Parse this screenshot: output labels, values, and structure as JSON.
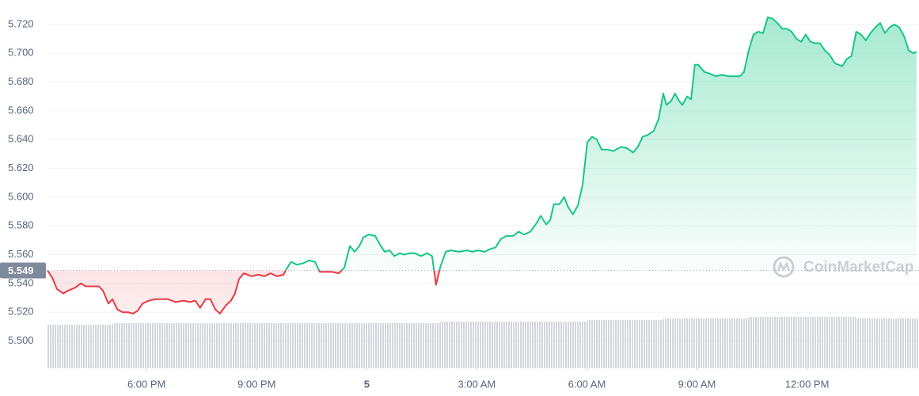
{
  "chart_data": {
    "type": "line",
    "watermark": "CoinMarketCap",
    "baseline": 5.549,
    "up_color": "#16c784",
    "down_color": "#ea3943",
    "volume_color": "#d3d7dd",
    "grid": true,
    "xlim": [
      15.3,
      39.05
    ],
    "ylim": [
      5.481,
      5.737
    ],
    "y2lim": [
      0,
      465
    ],
    "xticks": [
      {
        "value": 18,
        "label": "6:00 PM"
      },
      {
        "value": 21,
        "label": "9:00 PM"
      },
      {
        "value": 24,
        "label": "5"
      },
      {
        "value": 27,
        "label": "3:00 AM"
      },
      {
        "value": 30,
        "label": "6:00 AM"
      },
      {
        "value": 33,
        "label": "9:00 AM"
      },
      {
        "value": 36,
        "label": "12:00 PM"
      }
    ],
    "yticks": [
      {
        "value": 5.5,
        "label": "5.500"
      },
      {
        "value": 5.52,
        "label": "5.520"
      },
      {
        "value": 5.54,
        "label": "5.540"
      },
      {
        "value": 5.56,
        "label": "5.560"
      },
      {
        "value": 5.58,
        "label": "5.580"
      },
      {
        "value": 5.6,
        "label": "5.600"
      },
      {
        "value": 5.62,
        "label": "5.620"
      },
      {
        "value": 5.64,
        "label": "5.640"
      },
      {
        "value": 5.66,
        "label": "5.660"
      },
      {
        "value": 5.68,
        "label": "5.680"
      },
      {
        "value": 5.7,
        "label": "5.700"
      },
      {
        "value": 5.72,
        "label": "5.720"
      }
    ],
    "x": [
      15.3,
      15.43,
      15.56,
      15.73,
      15.86,
      16.05,
      16.21,
      16.34,
      16.49,
      16.7,
      16.81,
      16.96,
      17.07,
      17.2,
      17.35,
      17.5,
      17.63,
      17.76,
      17.89,
      18.06,
      18.23,
      18.41,
      18.58,
      18.79,
      19.01,
      19.18,
      19.33,
      19.46,
      19.61,
      19.74,
      19.87,
      20.0,
      20.17,
      20.3,
      20.41,
      20.52,
      20.65,
      20.86,
      21.04,
      21.21,
      21.38,
      21.55,
      21.73,
      21.81,
      21.94,
      22.09,
      22.27,
      22.42,
      22.59,
      22.72,
      22.89,
      23.06,
      23.24,
      23.39,
      23.54,
      23.67,
      23.8,
      23.91,
      24.06,
      24.23,
      24.36,
      24.49,
      24.62,
      24.75,
      24.9,
      25.01,
      25.18,
      25.31,
      25.48,
      25.65,
      25.78,
      25.89,
      26.0,
      26.15,
      26.3,
      26.52,
      26.73,
      26.88,
      27.03,
      27.21,
      27.38,
      27.51,
      27.66,
      27.81,
      27.99,
      28.14,
      28.29,
      28.46,
      28.63,
      28.74,
      28.89,
      29.0,
      29.1,
      29.25,
      29.38,
      29.49,
      29.62,
      29.75,
      29.88,
      30.01,
      30.14,
      30.27,
      30.4,
      30.57,
      30.72,
      30.94,
      31.09,
      31.26,
      31.39,
      31.52,
      31.65,
      31.82,
      31.95,
      32.08,
      32.17,
      32.3,
      32.4,
      32.51,
      32.6,
      32.73,
      32.84,
      32.94,
      33.03,
      33.2,
      33.33,
      33.51,
      33.68,
      33.85,
      33.98,
      34.17,
      34.28,
      34.41,
      34.54,
      34.67,
      34.8,
      34.93,
      35.06,
      35.19,
      35.32,
      35.45,
      35.58,
      35.71,
      35.84,
      35.96,
      36.09,
      36.22,
      36.35,
      36.48,
      36.61,
      36.76,
      36.96,
      37.08,
      37.21,
      37.34,
      37.47,
      37.6,
      37.73,
      37.86,
      37.99,
      38.12,
      38.25,
      38.38,
      38.51,
      38.64,
      38.77,
      38.9,
      38.98
    ],
    "values": [
      5.549,
      5.544,
      5.536,
      5.533,
      5.535,
      5.537,
      5.54,
      5.538,
      5.538,
      5.538,
      5.535,
      5.526,
      5.529,
      5.522,
      5.52,
      5.52,
      5.519,
      5.521,
      5.526,
      5.528,
      5.529,
      5.529,
      5.529,
      5.527,
      5.528,
      5.527,
      5.528,
      5.523,
      5.529,
      5.529,
      5.522,
      5.519,
      5.525,
      5.528,
      5.533,
      5.543,
      5.547,
      5.545,
      5.546,
      5.545,
      5.547,
      5.545,
      5.546,
      5.55,
      5.555,
      5.553,
      5.554,
      5.556,
      5.555,
      5.548,
      5.548,
      5.548,
      5.547,
      5.551,
      5.566,
      5.562,
      5.566,
      5.572,
      5.574,
      5.573,
      5.567,
      5.562,
      5.563,
      5.559,
      5.561,
      5.56,
      5.561,
      5.561,
      5.559,
      5.561,
      5.559,
      5.539,
      5.551,
      5.562,
      5.563,
      5.562,
      5.563,
      5.562,
      5.563,
      5.562,
      5.564,
      5.565,
      5.571,
      5.573,
      5.573,
      5.576,
      5.574,
      5.576,
      5.582,
      5.587,
      5.581,
      5.584,
      5.595,
      5.595,
      5.6,
      5.593,
      5.588,
      5.594,
      5.608,
      5.638,
      5.642,
      5.64,
      5.633,
      5.633,
      5.632,
      5.635,
      5.634,
      5.631,
      5.635,
      5.642,
      5.643,
      5.646,
      5.654,
      5.672,
      5.664,
      5.667,
      5.672,
      5.667,
      5.664,
      5.67,
      5.668,
      5.692,
      5.692,
      5.687,
      5.686,
      5.684,
      5.685,
      5.684,
      5.684,
      5.684,
      5.687,
      5.702,
      5.713,
      5.715,
      5.714,
      5.725,
      5.724,
      5.721,
      5.717,
      5.717,
      5.715,
      5.71,
      5.708,
      5.713,
      5.708,
      5.707,
      5.707,
      5.702,
      5.699,
      5.693,
      5.691,
      5.696,
      5.698,
      5.715,
      5.713,
      5.709,
      5.714,
      5.718,
      5.721,
      5.714,
      5.718,
      5.72,
      5.718,
      5.712,
      5.702,
      5.7,
      5.701
    ],
    "volume": [
      55,
      55,
      55,
      55,
      55,
      55,
      55,
      55,
      55,
      55,
      55,
      55,
      57,
      57,
      57,
      57,
      57,
      57,
      57,
      57,
      57,
      57,
      57,
      57,
      57,
      57,
      57,
      57,
      57,
      57,
      57,
      57,
      57,
      57,
      57,
      57,
      57,
      57,
      57,
      57,
      57,
      57,
      57,
      57,
      57,
      57,
      57,
      57,
      57,
      57,
      57,
      57,
      57,
      57,
      57,
      57,
      57,
      57,
      57,
      57,
      57,
      57,
      57,
      57,
      57,
      57,
      57,
      57,
      57,
      57,
      57,
      57,
      59,
      59,
      59,
      59,
      59,
      59,
      59,
      59,
      59,
      59,
      59,
      59,
      59,
      59,
      59,
      59,
      59,
      59,
      59,
      59,
      59,
      59,
      59,
      59,
      59,
      59,
      59,
      61,
      61,
      61,
      61,
      61,
      61,
      61,
      61,
      61,
      61,
      61,
      61,
      61,
      61,
      63,
      63,
      63,
      63,
      63,
      63,
      63,
      63,
      63,
      63,
      63,
      63,
      63,
      63,
      63,
      63,
      63,
      63,
      65,
      65,
      65,
      65,
      65,
      65,
      65,
      65,
      65,
      65,
      65,
      65,
      65,
      65,
      65,
      65,
      65,
      65,
      65,
      65,
      65,
      65,
      63,
      63,
      63,
      63,
      63,
      63,
      63,
      63,
      63,
      63,
      63,
      63,
      63,
      63
    ]
  }
}
